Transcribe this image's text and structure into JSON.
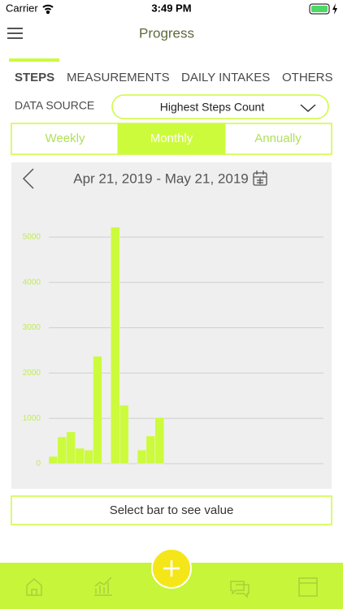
{
  "status_bar": {
    "carrier": "Carrier",
    "time": "3:49 PM"
  },
  "header": {
    "title": "Progress"
  },
  "tabs": [
    "STEPS",
    "MEASUREMENTS",
    "DAILY INTAKES",
    "OTHERS"
  ],
  "data_source": {
    "label": "DATA SOURCE",
    "value": "Highest Steps Count"
  },
  "periods": [
    "Weekly",
    "Monthly",
    "Annually"
  ],
  "date_range": "Apr 21, 2019 - May 21, 2019",
  "chart_data": {
    "type": "bar",
    "categories": [
      null,
      null,
      null,
      null,
      null,
      null,
      null,
      null,
      null,
      null,
      null,
      null,
      null,
      null,
      null,
      null,
      null,
      null,
      null,
      null,
      null,
      null,
      null,
      null,
      null,
      null,
      null,
      null,
      null,
      null,
      null
    ],
    "values": [
      160,
      590,
      700,
      340,
      300,
      2370,
      20,
      5220,
      1290,
      0,
      300,
      610,
      1020,
      0,
      0,
      0,
      0,
      0,
      0,
      0,
      0,
      0,
      0,
      0,
      0,
      0,
      0,
      0,
      0,
      0,
      0
    ],
    "color": "#ccfb3c",
    "ylim": [
      0,
      5000
    ],
    "yticks": [
      0,
      1000,
      2000,
      3000,
      4000,
      5000
    ],
    "grid": true
  },
  "select_button": "Select bar to see value"
}
